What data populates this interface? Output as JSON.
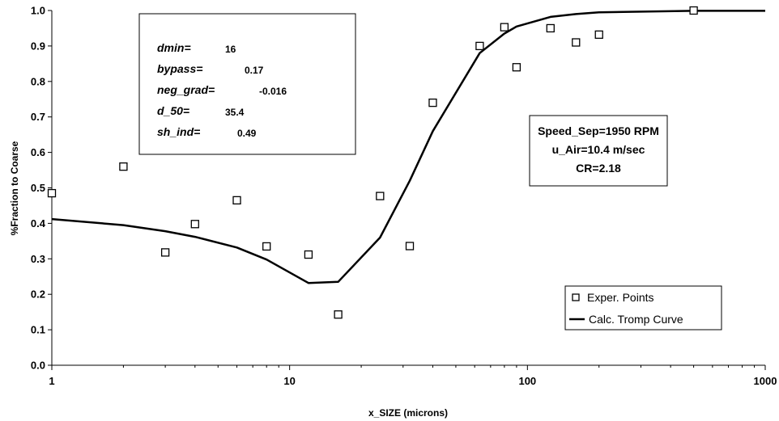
{
  "chart_data": {
    "type": "scatter",
    "xlabel": "x_SIZE (microns)",
    "ylabel": "%Fraction to Coarse",
    "x_scale": "log",
    "xlim": [
      1,
      1000
    ],
    "ylim": [
      0,
      1
    ],
    "x_tick_values": [
      1,
      10,
      100,
      1000
    ],
    "x_ticks": [
      "1",
      "10",
      "100",
      "1000"
    ],
    "y_tick_values": [
      0,
      0.1,
      0.2,
      0.3,
      0.4,
      0.5,
      0.6,
      0.7,
      0.8,
      0.9,
      1.0
    ],
    "y_ticks": [
      "0.0",
      "0.1",
      "0.2",
      "0.3",
      "0.4",
      "0.5",
      "0.6",
      "0.7",
      "0.8",
      "0.9",
      "1.0"
    ],
    "grid": false,
    "legend_position": "bottom-right",
    "series": [
      {
        "name": "Exper. Points",
        "kind": "scatter",
        "marker": "open-square",
        "color": "#000000",
        "x": [
          1,
          2,
          3,
          4,
          6,
          8,
          12,
          16,
          24,
          32,
          40,
          63,
          80,
          90,
          125,
          160,
          200,
          500
        ],
        "y": [
          0.485,
          0.56,
          0.318,
          0.398,
          0.465,
          0.335,
          0.312,
          0.143,
          0.477,
          0.336,
          0.74,
          0.9,
          0.953,
          0.84,
          0.95,
          0.91,
          0.932,
          1.0
        ]
      },
      {
        "name": "Calc. Tromp Curve",
        "kind": "line",
        "color": "#000000",
        "x": [
          1,
          2,
          3,
          4,
          6,
          8,
          12,
          16,
          24,
          32,
          40,
          63,
          80,
          90,
          125,
          160,
          200,
          500,
          1000
        ],
        "y": [
          0.412,
          0.395,
          0.378,
          0.362,
          0.332,
          0.298,
          0.232,
          0.235,
          0.36,
          0.52,
          0.66,
          0.88,
          0.935,
          0.955,
          0.982,
          0.99,
          0.995,
          0.999,
          0.999
        ]
      }
    ],
    "parameters": [
      {
        "name": "dmin=",
        "value": "16"
      },
      {
        "name": "bypass=",
        "value": "0.17"
      },
      {
        "name": "neg_grad=",
        "value": "-0.016"
      },
      {
        "name": "d_50=",
        "value": "35.4"
      },
      {
        "name": "sh_ind=",
        "value": "0.49"
      }
    ],
    "conditions": [
      "Speed_Sep=1950 RPM",
      "u_Air=10.4 m/sec",
      "CR=2.18"
    ]
  }
}
